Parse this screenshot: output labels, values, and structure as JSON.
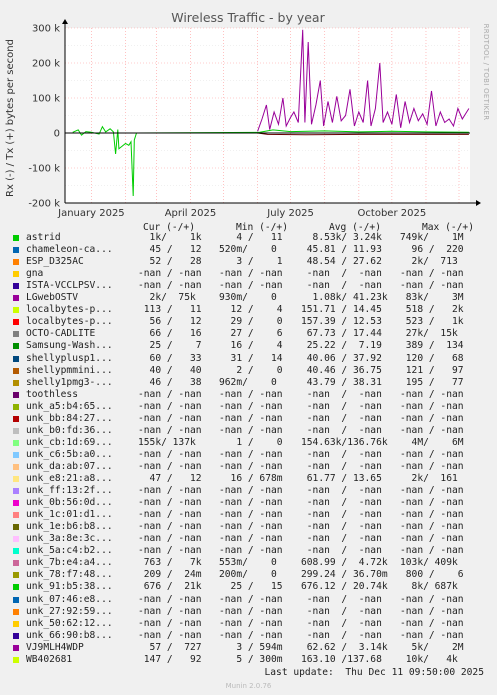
{
  "chart_data": {
    "type": "line",
    "title": "Wireless Traffic - by year",
    "ylabel": "Rx (-) / Tx (+) bytes per second",
    "side_label": "RRDTOOL / TOBI OETIKER",
    "ylim": [
      -200000,
      300000
    ],
    "y_ticks": [
      {
        "value": 300000,
        "label": "300 k"
      },
      {
        "value": 200000,
        "label": "200 k"
      },
      {
        "value": 100000,
        "label": "100 k"
      },
      {
        "value": 0,
        "label": "0"
      },
      {
        "value": -100000,
        "label": "-100 k"
      },
      {
        "value": -200000,
        "label": "-200 k"
      }
    ],
    "x_range": [
      "2024-12-08",
      "2025-12-11"
    ],
    "x_ticks": [
      {
        "date": "2025-01-01",
        "label": "January 2025"
      },
      {
        "date": "2025-04-01",
        "label": "April 2025"
      },
      {
        "date": "2025-07-01",
        "label": "July 2025"
      },
      {
        "date": "2025-10-01",
        "label": "October 2025"
      }
    ],
    "grid": true,
    "series": [
      {
        "name": "astrid",
        "color": "#00cc00",
        "points": [
          [
            "2024-12-15",
            2000
          ],
          [
            "2024-12-20",
            9000
          ],
          [
            "2024-12-23",
            -6000
          ],
          [
            "2024-12-27",
            4000
          ],
          [
            "2025-01-01",
            2000
          ],
          [
            "2025-01-08",
            -3000
          ],
          [
            "2025-01-11",
            18000
          ],
          [
            "2025-01-14",
            3000
          ],
          [
            "2025-01-18",
            12000
          ],
          [
            "2025-01-21",
            3000
          ],
          [
            "2025-01-23",
            -60000
          ],
          [
            "2025-01-25",
            10000
          ],
          [
            "2025-01-26",
            -45000
          ],
          [
            "2025-01-28",
            -40000
          ],
          [
            "2025-02-01",
            -30000
          ],
          [
            "2025-02-04",
            -35000
          ],
          [
            "2025-02-06",
            -25000
          ],
          [
            "2025-02-08",
            -180000
          ],
          [
            "2025-02-09",
            -20000
          ],
          [
            "2025-02-11",
            0
          ],
          [
            "2025-06-03",
            2000
          ],
          [
            "2025-06-15",
            9000
          ],
          [
            "2025-07-01",
            4000
          ],
          [
            "2025-08-01",
            6000
          ],
          [
            "2025-09-01",
            3000
          ],
          [
            "2025-10-01",
            5000
          ],
          [
            "2025-11-01",
            3000
          ],
          [
            "2025-12-10",
            2000
          ]
        ]
      },
      {
        "name": "LGwebOSTV",
        "color": "#990099",
        "points": [
          [
            "2025-06-01",
            5000
          ],
          [
            "2025-06-05",
            40000
          ],
          [
            "2025-06-09",
            80000
          ],
          [
            "2025-06-12",
            10000
          ],
          [
            "2025-06-16",
            60000
          ],
          [
            "2025-06-20",
            25000
          ],
          [
            "2025-06-24",
            100000
          ],
          [
            "2025-06-27",
            20000
          ],
          [
            "2025-07-01",
            45000
          ],
          [
            "2025-07-04",
            60000
          ],
          [
            "2025-07-08",
            30000
          ],
          [
            "2025-07-12",
            295000
          ],
          [
            "2025-07-14",
            30000
          ],
          [
            "2025-07-17",
            260000
          ],
          [
            "2025-07-20",
            25000
          ],
          [
            "2025-07-24",
            80000
          ],
          [
            "2025-07-28",
            150000
          ],
          [
            "2025-07-31",
            20000
          ],
          [
            "2025-08-04",
            90000
          ],
          [
            "2025-08-08",
            30000
          ],
          [
            "2025-08-12",
            105000
          ],
          [
            "2025-08-16",
            35000
          ],
          [
            "2025-08-20",
            50000
          ],
          [
            "2025-08-24",
            125000
          ],
          [
            "2025-08-28",
            20000
          ],
          [
            "2025-09-01",
            60000
          ],
          [
            "2025-09-05",
            30000
          ],
          [
            "2025-09-09",
            150000
          ],
          [
            "2025-09-12",
            20000
          ],
          [
            "2025-09-16",
            70000
          ],
          [
            "2025-09-20",
            200000
          ],
          [
            "2025-09-23",
            30000
          ],
          [
            "2025-09-27",
            60000
          ],
          [
            "2025-10-01",
            25000
          ],
          [
            "2025-10-05",
            110000
          ],
          [
            "2025-10-09",
            15000
          ],
          [
            "2025-10-13",
            90000
          ],
          [
            "2025-10-17",
            30000
          ],
          [
            "2025-10-21",
            70000
          ],
          [
            "2025-10-25",
            35000
          ],
          [
            "2025-10-29",
            55000
          ],
          [
            "2025-11-02",
            25000
          ],
          [
            "2025-11-06",
            120000
          ],
          [
            "2025-11-10",
            20000
          ],
          [
            "2025-11-14",
            60000
          ],
          [
            "2025-11-18",
            30000
          ],
          [
            "2025-11-22",
            40000
          ],
          [
            "2025-11-26",
            20000
          ],
          [
            "2025-11-30",
            70000
          ],
          [
            "2025-12-04",
            40000
          ],
          [
            "2025-12-08",
            60000
          ],
          [
            "2025-12-10",
            70000
          ]
        ]
      },
      {
        "name": "WB402681",
        "color": "#660000",
        "points": [
          [
            "2024-12-08",
            0
          ],
          [
            "2025-06-01",
            0
          ],
          [
            "2025-06-10",
            -4000
          ],
          [
            "2025-07-15",
            -5000
          ],
          [
            "2025-09-01",
            -4000
          ],
          [
            "2025-12-10",
            -4000
          ]
        ]
      }
    ]
  },
  "legend": {
    "headers": {
      "cur": "Cur (-/+)",
      "min": "Min (-/+)",
      "avg": "Avg (-/+)",
      "max": "Max (-/+)"
    },
    "rows": [
      {
        "name": "astrid",
        "color": "#00cc00",
        "cur": "  1k/    1k",
        "min": "   4 /   11",
        "avg": "  8.53k/ 3.24k",
        "max": "749k/    1M"
      },
      {
        "name": "chameleon-ca...",
        "color": "#0066b3",
        "cur": "  45 /   12",
        "min": "520m/    0",
        "avg": " 45.81 / 11.93",
        "max": "  96 /  220"
      },
      {
        "name": "ESP_D325AC",
        "color": "#ff8000",
        "cur": "  52 /   28",
        "min": "   3 /    1",
        "avg": " 48.54 / 27.62",
        "max": "  2k/  713"
      },
      {
        "name": "gna",
        "color": "#ffcc00",
        "cur": "-nan / -nan",
        "min": "-nan / -nan",
        "avg": " -nan  /  -nan",
        "max": "-nan / -nan"
      },
      {
        "name": "ISTA-VCCLPSV...",
        "color": "#330099",
        "cur": "-nan / -nan",
        "min": "-nan / -nan",
        "avg": " -nan  /  -nan",
        "max": "-nan / -nan"
      },
      {
        "name": "LGwebOSTV",
        "color": "#990099",
        "cur": "  2k/  75k",
        "min": "930m/    0",
        "avg": "  1.08k/ 41.23k",
        "max": " 83k/    3M"
      },
      {
        "name": "localbytes-p...",
        "color": "#ccff00",
        "cur": " 113 /   11",
        "min": "  12 /    4",
        "avg": "151.71 / 14.45",
        "max": " 518 /   2k"
      },
      {
        "name": "localbytes-p...",
        "color": "#ff0000",
        "cur": "  56 /   12",
        "min": "  29 /    0",
        "avg": "157.39 / 12.53",
        "max": " 523 /   1k"
      },
      {
        "name": "OCTO-CADLITE",
        "color": "#808080",
        "cur": "  66 /   16",
        "min": "  27 /    6",
        "avg": " 67.73 / 17.44",
        "max": " 27k/  15k"
      },
      {
        "name": "Samsung-Wash...",
        "color": "#008f00",
        "cur": "  25 /    7",
        "min": "  16 /    4",
        "avg": " 25.22 /  7.19",
        "max": " 389 /  134"
      },
      {
        "name": "shellyplusp1...",
        "color": "#00487d",
        "cur": "  60 /   33",
        "min": "  31 /   14",
        "avg": " 40.06 / 37.92",
        "max": " 120 /   68"
      },
      {
        "name": "shellypmmini...",
        "color": "#b35a00",
        "cur": "  40 /   40",
        "min": "   2 /    0",
        "avg": " 40.46 / 36.75",
        "max": " 121 /   97"
      },
      {
        "name": "shelly1pmg3-...",
        "color": "#b38f00",
        "cur": "  46 /   38",
        "min": "962m/    0",
        "avg": " 43.79 / 38.31",
        "max": " 195 /   77"
      },
      {
        "name": "toothless",
        "color": "#6b006b",
        "cur": "-nan / -nan",
        "min": "-nan / -nan",
        "avg": " -nan  /  -nan",
        "max": "-nan / -nan"
      },
      {
        "name": "unk_a5:b4:65...",
        "color": "#8fb300",
        "cur": "-nan / -nan",
        "min": "-nan / -nan",
        "avg": " -nan  /  -nan",
        "max": "-nan / -nan"
      },
      {
        "name": "unk_bb:84:27...",
        "color": "#b30000",
        "cur": "-nan / -nan",
        "min": "-nan / -nan",
        "avg": " -nan  /  -nan",
        "max": "-nan / -nan"
      },
      {
        "name": "unk_b0:fd:36...",
        "color": "#bebebe",
        "cur": "-nan / -nan",
        "min": "-nan / -nan",
        "avg": " -nan  /  -nan",
        "max": "-nan / -nan"
      },
      {
        "name": "unk_cb:1d:69...",
        "color": "#80ff80",
        "cur": "155k/ 137k",
        "min": "   1 /    0",
        "avg": "154.63k/136.76k",
        "max": "  4M/    6M"
      },
      {
        "name": "unk_c6:5b:a0...",
        "color": "#80c9ff",
        "cur": "-nan / -nan",
        "min": "-nan / -nan",
        "avg": " -nan  /  -nan",
        "max": "-nan / -nan"
      },
      {
        "name": "unk_da:ab:07...",
        "color": "#ffc080",
        "cur": "-nan / -nan",
        "min": "-nan / -nan",
        "avg": " -nan  /  -nan",
        "max": "-nan / -nan"
      },
      {
        "name": "unk_e8:21:a8...",
        "color": "#ffe680",
        "cur": "  47 /   12",
        "min": "  16 / 678m",
        "avg": " 61.77 / 13.65",
        "max": "  2k/  161"
      },
      {
        "name": "unk_ff:13:2f...",
        "color": "#aa80ff",
        "cur": "-nan / -nan",
        "min": "-nan / -nan",
        "avg": " -nan  /  -nan",
        "max": "-nan / -nan"
      },
      {
        "name": "unk_0b:56:0d...",
        "color": "#ee00cc",
        "cur": "-nan / -nan",
        "min": "-nan / -nan",
        "avg": " -nan  /  -nan",
        "max": "-nan / -nan"
      },
      {
        "name": "unk_1c:01:d1...",
        "color": "#ff8080",
        "cur": "-nan / -nan",
        "min": "-nan / -nan",
        "avg": " -nan  /  -nan",
        "max": "-nan / -nan"
      },
      {
        "name": "unk_1e:b6:b8...",
        "color": "#666600",
        "cur": "-nan / -nan",
        "min": "-nan / -nan",
        "avg": " -nan  /  -nan",
        "max": "-nan / -nan"
      },
      {
        "name": "unk_3a:8e:3c...",
        "color": "#ffbfff",
        "cur": "-nan / -nan",
        "min": "-nan / -nan",
        "avg": " -nan  /  -nan",
        "max": "-nan / -nan"
      },
      {
        "name": "unk_5a:c4:b2...",
        "color": "#00ffcc",
        "cur": "-nan / -nan",
        "min": "-nan / -nan",
        "avg": " -nan  /  -nan",
        "max": "-nan / -nan"
      },
      {
        "name": "unk_7b:e4:a4...",
        "color": "#cc6699",
        "cur": " 763 /   7k",
        "min": "553m/    0",
        "avg": "608.99 /  4.72k",
        "max": "103k/ 409k"
      },
      {
        "name": "unk_78:f7:48...",
        "color": "#999900",
        "cur": " 209 /  24m",
        "min": "200m/    0",
        "avg": "299.24 / 36.70m",
        "max": " 800 /    6"
      },
      {
        "name": "unk_91:b5:38...",
        "color": "#00cc00",
        "cur": " 676 /  21k",
        "min": "  25 /   15",
        "avg": "676.12 / 20.74k",
        "max": "  8k/ 687k"
      },
      {
        "name": "unk_07:46:e8...",
        "color": "#0066b3",
        "cur": "-nan / -nan",
        "min": "-nan / -nan",
        "avg": " -nan  /  -nan",
        "max": "-nan / -nan"
      },
      {
        "name": "unk_27:92:59...",
        "color": "#ff8000",
        "cur": "-nan / -nan",
        "min": "-nan / -nan",
        "avg": " -nan  /  -nan",
        "max": "-nan / -nan"
      },
      {
        "name": "unk_50:62:12...",
        "color": "#ffcc00",
        "cur": "-nan / -nan",
        "min": "-nan / -nan",
        "avg": " -nan  /  -nan",
        "max": "-nan / -nan"
      },
      {
        "name": "unk_66:90:b8...",
        "color": "#330099",
        "cur": "-nan / -nan",
        "min": "-nan / -nan",
        "avg": " -nan  /  -nan",
        "max": "-nan / -nan"
      },
      {
        "name": "VJ9MLH4WDP",
        "color": "#990099",
        "cur": "  57 /  727",
        "min": "   3 / 594m",
        "avg": " 62.62 /  3.14k",
        "max": "  5k/    2M"
      },
      {
        "name": "WB402681",
        "color": "#ccff00",
        "cur": " 147 /   92",
        "min": "   5 / 300m",
        "avg": "163.10 /137.68",
        "max": " 10k/   4k"
      }
    ]
  },
  "footer": {
    "last_update": "Last update:  Thu Dec 11 09:50:00 2025",
    "munin": "Munin 2.0.76"
  }
}
